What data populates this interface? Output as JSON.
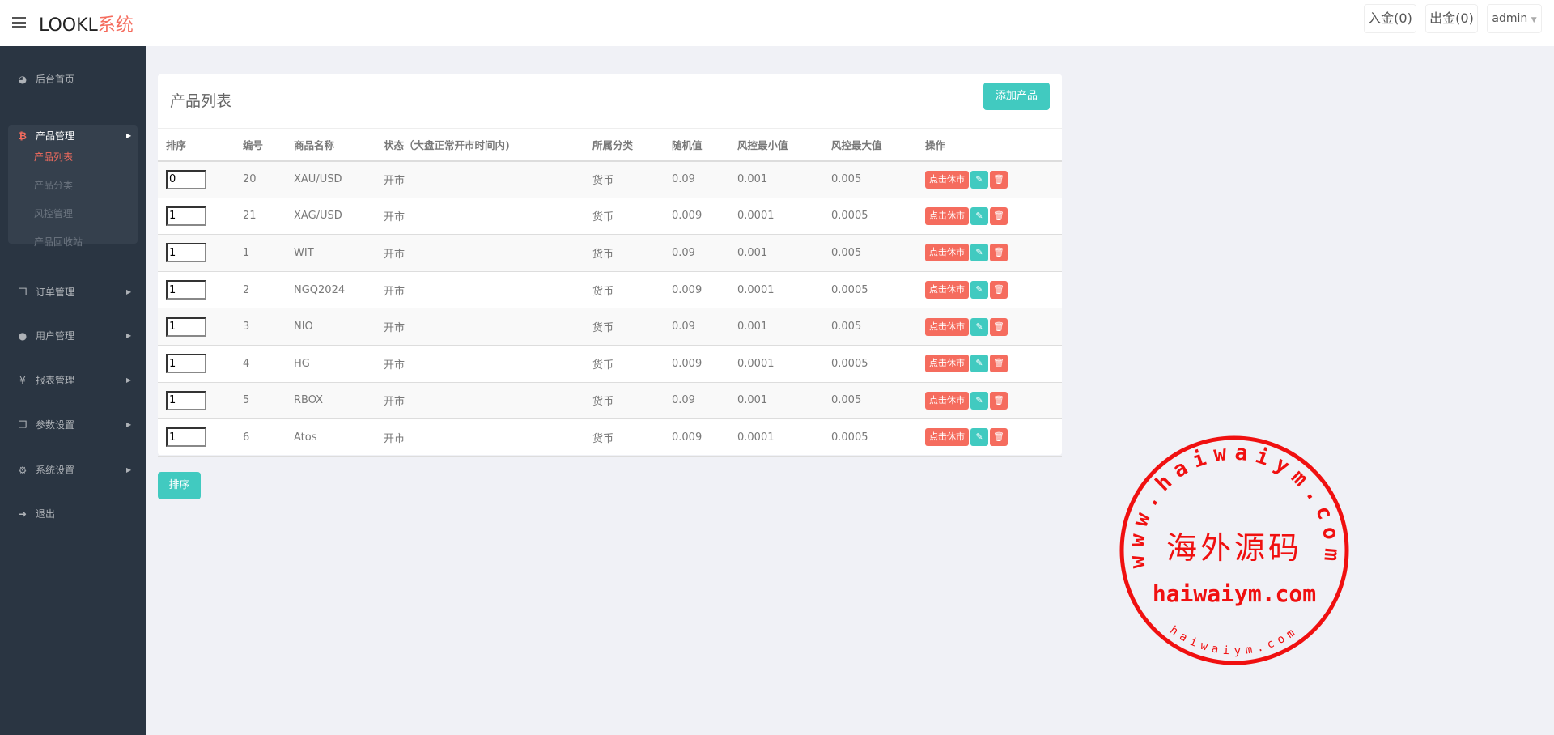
{
  "header": {
    "logo_main": "LOOKL",
    "logo_accent": "系统",
    "deposit": "入金(0)",
    "withdraw": "出金(0)",
    "user": "admin"
  },
  "sidebar": {
    "items": [
      {
        "label": "后台首页",
        "icon": "dashboard-icon"
      },
      {
        "label": "产品管理",
        "icon": "bitcoin-icon"
      },
      {
        "label": "订单管理",
        "icon": "copy-icon"
      },
      {
        "label": "用户管理",
        "icon": "user-icon"
      },
      {
        "label": "报表管理",
        "icon": "yen-icon"
      },
      {
        "label": "参数设置",
        "icon": "copy-icon"
      },
      {
        "label": "系统设置",
        "icon": "gears-icon"
      },
      {
        "label": "退出",
        "icon": "sign-out-icon"
      }
    ],
    "sub_items": [
      "产品列表",
      "产品分类",
      "风控管理",
      "产品回收站"
    ]
  },
  "card": {
    "title": "产品列表",
    "add_label": "添加产品"
  },
  "table": {
    "headers": [
      "排序",
      "编号",
      "商品名称",
      "状态（大盘正常开市时间内)",
      "所属分类",
      "随机值",
      "风控最小值",
      "风控最大值",
      "操作"
    ],
    "rows": [
      {
        "sort": "0",
        "id": "20",
        "name": "XAU/USD",
        "status": "开市",
        "category": "货币",
        "random": "0.09",
        "min": "0.001",
        "max": "0.005"
      },
      {
        "sort": "1",
        "id": "21",
        "name": "XAG/USD",
        "status": "开市",
        "category": "货币",
        "random": "0.009",
        "min": "0.0001",
        "max": "0.0005"
      },
      {
        "sort": "1",
        "id": "1",
        "name": "WIT",
        "status": "开市",
        "category": "货币",
        "random": "0.09",
        "min": "0.001",
        "max": "0.005"
      },
      {
        "sort": "1",
        "id": "2",
        "name": "NGQ2024",
        "status": "开市",
        "category": "货币",
        "random": "0.009",
        "min": "0.0001",
        "max": "0.0005"
      },
      {
        "sort": "1",
        "id": "3",
        "name": "NIO",
        "status": "开市",
        "category": "货币",
        "random": "0.09",
        "min": "0.001",
        "max": "0.005"
      },
      {
        "sort": "1",
        "id": "4",
        "name": "HG",
        "status": "开市",
        "category": "货币",
        "random": "0.009",
        "min": "0.0001",
        "max": "0.0005"
      },
      {
        "sort": "1",
        "id": "5",
        "name": "RBOX",
        "status": "开市",
        "category": "货币",
        "random": "0.09",
        "min": "0.001",
        "max": "0.005"
      },
      {
        "sort": "1",
        "id": "6",
        "name": "Atos",
        "status": "开市",
        "category": "货币",
        "random": "0.009",
        "min": "0.0001",
        "max": "0.0005"
      }
    ],
    "rest_label": "点击休市"
  },
  "sort_button": "排序",
  "watermark": {
    "arc_top": "www.haiwaiym.com",
    "center": "海外源码",
    "line": "haiwaiym.com",
    "arc_bottom": "haiwaiym.com"
  },
  "colors": {
    "accent": "#41cac0",
    "danger": "#f56c5e",
    "sidebar": "#2a3542"
  }
}
